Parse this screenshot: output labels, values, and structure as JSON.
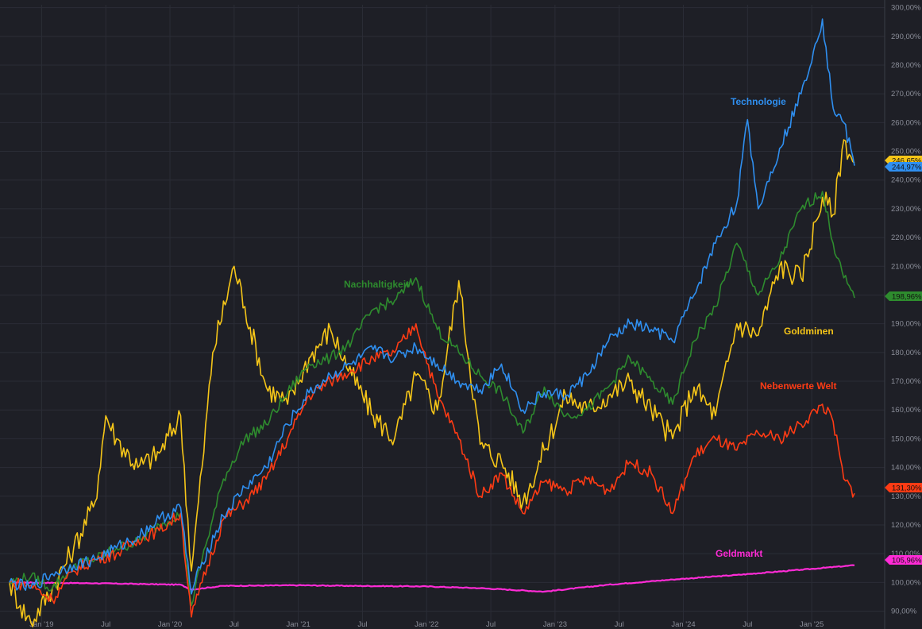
{
  "chart_data": {
    "type": "line",
    "title": "",
    "xlabel": "",
    "ylabel": "",
    "ylim": [
      86,
      301
    ],
    "grid": true,
    "y_ticks": [
      "90,00%",
      "100,00%",
      "110,00%",
      "120,00%",
      "130,00%",
      "140,00%",
      "150,00%",
      "160,00%",
      "170,00%",
      "180,00%",
      "190,00%",
      "200,00%",
      "210,00%",
      "220,00%",
      "230,00%",
      "240,00%",
      "250,00%",
      "260,00%",
      "270,00%",
      "280,00%",
      "290,00%",
      "300,00%"
    ],
    "x_ticks": [
      "Jan '19",
      "Jul",
      "Jan '20",
      "Jul",
      "Jan '21",
      "Jul",
      "Jan '22",
      "Jul",
      "Jan '23",
      "Jul",
      "Jan '24",
      "Jul",
      "Jan '25"
    ],
    "series": [
      {
        "name": "Technologie",
        "color": "#2f8ff0",
        "end_label": "244,97%",
        "x": [
          "2018-10",
          "2018-12",
          "2019-02",
          "2019-04",
          "2019-06",
          "2019-08",
          "2019-10",
          "2019-12",
          "2020-02",
          "2020-03",
          "2020-04",
          "2020-06",
          "2020-08",
          "2020-10",
          "2020-12",
          "2021-02",
          "2021-04",
          "2021-06",
          "2021-08",
          "2021-10",
          "2021-12",
          "2022-02",
          "2022-04",
          "2022-06",
          "2022-08",
          "2022-10",
          "2022-12",
          "2023-02",
          "2023-04",
          "2023-06",
          "2023-08",
          "2023-10",
          "2023-12",
          "2024-02",
          "2024-04",
          "2024-06",
          "2024-07",
          "2024-08",
          "2024-10",
          "2024-12",
          "2025-02",
          "2025-03",
          "2025-04",
          "2025-05"
        ],
        "values": [
          100,
          98,
          103,
          106,
          108,
          112,
          116,
          122,
          126,
          96,
          107,
          123,
          133,
          140,
          155,
          166,
          172,
          176,
          181,
          178,
          182,
          176,
          170,
          167,
          176,
          160,
          166,
          165,
          172,
          184,
          190,
          188,
          184,
          200,
          218,
          232,
          261,
          230,
          251,
          270,
          296,
          265,
          260,
          245
        ]
      },
      {
        "name": "Nachhaltigkeit",
        "color": "#2e8b2e",
        "end_label": "198,96%",
        "x": [
          "2018-10",
          "2018-12",
          "2019-02",
          "2019-04",
          "2019-06",
          "2019-08",
          "2019-10",
          "2019-12",
          "2020-02",
          "2020-03",
          "2020-04",
          "2020-06",
          "2020-08",
          "2020-10",
          "2020-12",
          "2021-02",
          "2021-04",
          "2021-06",
          "2021-08",
          "2021-10",
          "2021-12",
          "2022-02",
          "2022-04",
          "2022-06",
          "2022-08",
          "2022-10",
          "2022-12",
          "2023-02",
          "2023-04",
          "2023-06",
          "2023-08",
          "2023-10",
          "2023-12",
          "2024-02",
          "2024-04",
          "2024-06",
          "2024-08",
          "2024-10",
          "2024-12",
          "2025-02",
          "2025-03",
          "2025-04",
          "2025-05"
        ],
        "values": [
          100,
          102,
          98,
          106,
          108,
          112,
          114,
          120,
          124,
          92,
          108,
          136,
          150,
          155,
          166,
          176,
          178,
          184,
          195,
          198,
          206,
          188,
          180,
          172,
          166,
          152,
          168,
          158,
          160,
          168,
          178,
          170,
          162,
          184,
          196,
          218,
          200,
          212,
          230,
          236,
          218,
          206,
          199
        ]
      },
      {
        "name": "Goldminen",
        "color": "#f5c518",
        "end_label": "246,65%",
        "x": [
          "2018-10",
          "2018-11",
          "2018-12",
          "2019-02",
          "2019-04",
          "2019-06",
          "2019-07",
          "2019-08",
          "2019-10",
          "2019-12",
          "2020-02",
          "2020-03",
          "2020-04",
          "2020-05",
          "2020-07",
          "2020-08",
          "2020-10",
          "2020-12",
          "2021-02",
          "2021-04",
          "2021-06",
          "2021-08",
          "2021-10",
          "2021-12",
          "2022-02",
          "2022-04",
          "2022-06",
          "2022-08",
          "2022-10",
          "2022-12",
          "2023-02",
          "2023-04",
          "2023-06",
          "2023-08",
          "2023-10",
          "2023-12",
          "2024-02",
          "2024-04",
          "2024-06",
          "2024-08",
          "2024-10",
          "2024-12",
          "2025-02",
          "2025-03",
          "2025-04",
          "2025-05"
        ],
        "values": [
          100,
          92,
          86,
          98,
          112,
          128,
          158,
          150,
          140,
          145,
          158,
          104,
          140,
          180,
          210,
          196,
          168,
          162,
          178,
          188,
          172,
          158,
          150,
          172,
          160,
          205,
          148,
          142,
          128,
          146,
          165,
          160,
          165,
          170,
          160,
          150,
          168,
          158,
          190,
          186,
          210,
          206,
          234,
          228,
          254,
          246
        ]
      },
      {
        "name": "Nebenwerte Welt",
        "color": "#ff3b14",
        "end_label": "131,30%",
        "x": [
          "2018-10",
          "2018-12",
          "2019-02",
          "2019-04",
          "2019-06",
          "2019-08",
          "2019-10",
          "2019-12",
          "2020-02",
          "2020-03",
          "2020-04",
          "2020-06",
          "2020-08",
          "2020-10",
          "2020-12",
          "2021-02",
          "2021-04",
          "2021-06",
          "2021-08",
          "2021-10",
          "2021-12",
          "2022-02",
          "2022-04",
          "2022-06",
          "2022-08",
          "2022-10",
          "2022-12",
          "2023-02",
          "2023-04",
          "2023-06",
          "2023-08",
          "2023-10",
          "2023-12",
          "2024-02",
          "2024-04",
          "2024-06",
          "2024-08",
          "2024-10",
          "2024-12",
          "2025-02",
          "2025-03",
          "2025-04",
          "2025-05"
        ],
        "values": [
          100,
          99,
          94,
          104,
          108,
          110,
          115,
          118,
          124,
          88,
          100,
          122,
          128,
          136,
          150,
          165,
          170,
          174,
          178,
          180,
          190,
          165,
          150,
          130,
          138,
          124,
          135,
          132,
          136,
          132,
          142,
          138,
          124,
          144,
          150,
          146,
          152,
          150,
          155,
          162,
          156,
          136,
          131
        ]
      },
      {
        "name": "Geldmarkt",
        "color": "#ff2bd6",
        "end_label": "105,96%",
        "x": [
          "2018-10",
          "2019-06",
          "2020-02",
          "2020-03",
          "2020-06",
          "2021-01",
          "2021-06",
          "2022-01",
          "2022-06",
          "2022-12",
          "2023-06",
          "2023-12",
          "2024-06",
          "2024-12",
          "2025-05"
        ],
        "values": [
          100,
          99.7,
          99.2,
          97.5,
          98.8,
          99,
          98.8,
          98.6,
          98,
          96.8,
          99.2,
          101,
          102.6,
          104.4,
          105.96
        ]
      }
    ],
    "annotations": [
      {
        "text": "Technologie",
        "series": "Technologie"
      },
      {
        "text": "Nachhaltigkeit",
        "series": "Nachhaltigkeit"
      },
      {
        "text": "Goldminen",
        "series": "Goldminen"
      },
      {
        "text": "Nebenwerte Welt",
        "series": "Nebenwerte Welt"
      },
      {
        "text": "Geldmarkt",
        "series": "Geldmarkt"
      }
    ]
  }
}
